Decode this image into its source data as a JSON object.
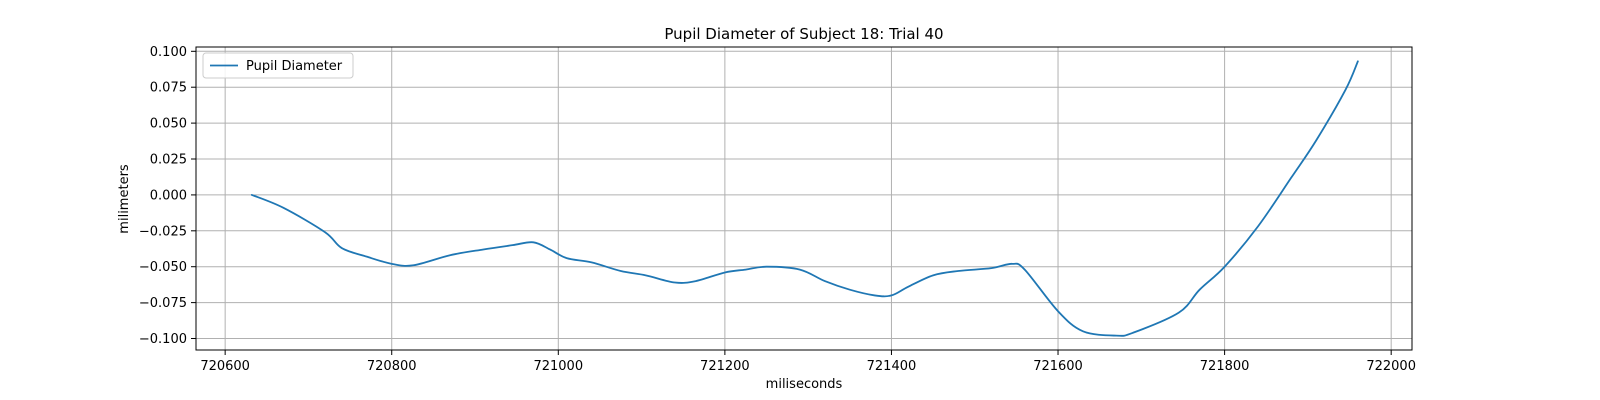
{
  "chart_data": {
    "type": "line",
    "title": "Pupil Diameter of Subject 18: Trial 40",
    "xlabel": "miliseconds",
    "ylabel": "milimeters",
    "xlim": [
      720565,
      722025
    ],
    "ylim": [
      -0.108,
      0.103
    ],
    "xticks": [
      720600,
      720800,
      721000,
      721200,
      721400,
      721600,
      721800,
      722000
    ],
    "xtick_labels": [
      "720600",
      "720800",
      "721000",
      "721200",
      "721400",
      "721600",
      "721800",
      "722000"
    ],
    "yticks": [
      0.1,
      0.075,
      0.05,
      0.025,
      0.0,
      -0.025,
      -0.05,
      -0.075,
      -0.1
    ],
    "ytick_labels": [
      "0.100",
      "0.075",
      "0.050",
      "0.025",
      "0.000",
      "−0.025",
      "−0.050",
      "−0.075",
      "−0.100"
    ],
    "grid": true,
    "legend_position": "upper-left",
    "series": [
      {
        "name": "Pupil Diameter",
        "color": "#1f77b4",
        "x": [
          720632,
          720670,
          720720,
          720740,
          720770,
          720800,
          720826,
          720870,
          720910,
          720945,
          720970,
          720990,
          721010,
          721040,
          721075,
          721105,
          721140,
          721165,
          721200,
          721225,
          721250,
          721290,
          721320,
          721350,
          721380,
          721400,
          721420,
          721450,
          721480,
          721520,
          721545,
          721560,
          721600,
          721630,
          721670,
          721690,
          721745,
          721770,
          721800,
          721840,
          721880,
          721910,
          721945,
          721960
        ],
        "y": [
          0.0,
          -0.009,
          -0.026,
          -0.037,
          -0.043,
          -0.048,
          -0.049,
          -0.042,
          -0.038,
          -0.035,
          -0.033,
          -0.038,
          -0.044,
          -0.047,
          -0.053,
          -0.056,
          -0.061,
          -0.06,
          -0.054,
          -0.052,
          -0.05,
          -0.052,
          -0.06,
          -0.066,
          -0.07,
          -0.07,
          -0.064,
          -0.056,
          -0.053,
          -0.051,
          -0.048,
          -0.052,
          -0.081,
          -0.095,
          -0.098,
          -0.096,
          -0.082,
          -0.066,
          -0.05,
          -0.022,
          0.012,
          0.038,
          0.073,
          0.093
        ]
      }
    ]
  }
}
